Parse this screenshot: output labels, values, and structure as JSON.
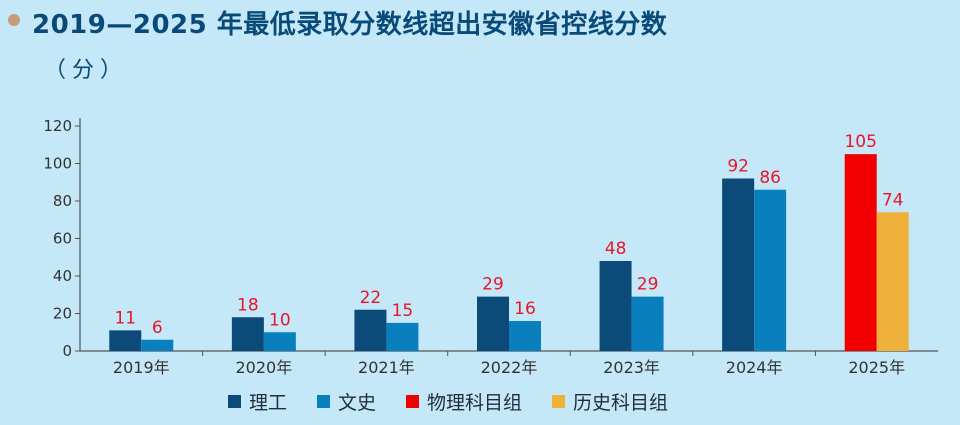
{
  "header": {
    "title": "2019—2025 年最低录取分数线超出安徽省控线分数",
    "unit": "（分）"
  },
  "colors": {
    "ligong": "#0b4a79",
    "wenshi": "#0a7fbe",
    "wuli": "#f20000",
    "lishi": "#efb13a",
    "label": "#e8162a",
    "axis": "#555555",
    "tick_text": "#333333"
  },
  "legend": [
    {
      "label": "理工",
      "color": "#0b4a79"
    },
    {
      "label": "文史",
      "color": "#0a7fbe"
    },
    {
      "label": "物理科目组",
      "color": "#f20000"
    },
    {
      "label": "历史科目组",
      "color": "#efb13a"
    }
  ],
  "chart_data": {
    "type": "bar",
    "title": "2019—2025 年最低录取分数线超出安徽省控线分数",
    "ylabel": "（分）",
    "xlabel": "",
    "categories": [
      "2019年",
      "2020年",
      "2021年",
      "2022年",
      "2023年",
      "2024年",
      "2025年"
    ],
    "ylim": [
      0,
      120
    ],
    "yticks": [
      0,
      20,
      40,
      60,
      80,
      100,
      120
    ],
    "grid": false,
    "legend_position": "bottom",
    "series": [
      {
        "name": "理工",
        "values": [
          11,
          18,
          22,
          29,
          48,
          92,
          null
        ]
      },
      {
        "name": "文史",
        "values": [
          6,
          10,
          15,
          16,
          29,
          86,
          null
        ]
      },
      {
        "name": "物理科目组",
        "values": [
          null,
          null,
          null,
          null,
          null,
          null,
          105
        ]
      },
      {
        "name": "历史科目组",
        "values": [
          null,
          null,
          null,
          null,
          null,
          null,
          74
        ]
      }
    ]
  }
}
